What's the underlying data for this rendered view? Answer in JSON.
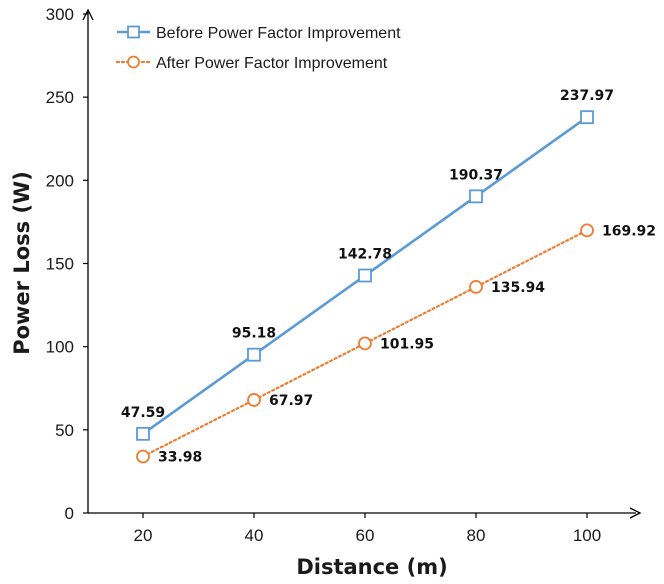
{
  "chart_data": {
    "type": "line",
    "xlabel": "Distance (m)",
    "ylabel": "Power Loss (W)",
    "x": [
      20,
      40,
      60,
      80,
      100
    ],
    "x_ticks": [
      "20",
      "40",
      "60",
      "80",
      "100"
    ],
    "y_ticks": [
      "0",
      "50",
      "100",
      "150",
      "200",
      "250",
      "300"
    ],
    "ylim": [
      0,
      300
    ],
    "grid": false,
    "legend_position": "top-left",
    "series": [
      {
        "name": "Before Power Factor Improvement",
        "values": [
          47.59,
          95.18,
          142.78,
          190.37,
          237.97
        ],
        "labels": [
          "47.59",
          "95.18",
          "142.78",
          "190.37",
          "237.97"
        ],
        "color": "#5b9bd5",
        "line_style": "solid",
        "marker": "square"
      },
      {
        "name": "After Power Factor Improvement",
        "values": [
          33.98,
          67.97,
          101.95,
          135.94,
          169.92
        ],
        "labels": [
          "33.98",
          "67.97",
          "101.95",
          "135.94",
          "169.92"
        ],
        "color": "#ed7d31",
        "line_style": "dotted",
        "marker": "circle"
      }
    ]
  }
}
